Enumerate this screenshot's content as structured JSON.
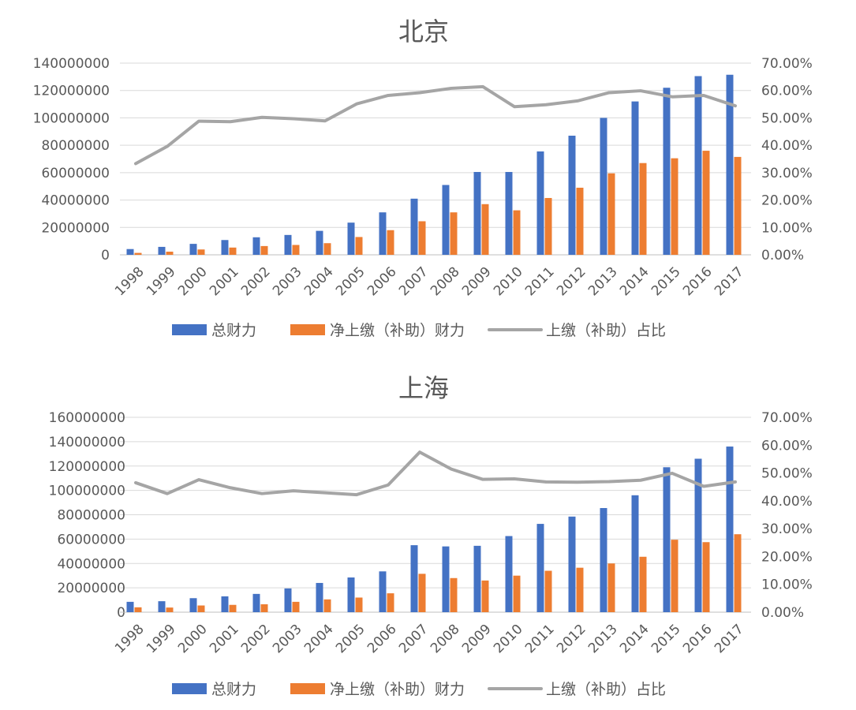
{
  "chart_data": [
    {
      "type": "bar",
      "title": "北京",
      "categories": [
        "1998",
        "1999",
        "2000",
        "2001",
        "2002",
        "2003",
        "2004",
        "2005",
        "2006",
        "2007",
        "2008",
        "2009",
        "2010",
        "2011",
        "2012",
        "2013",
        "2014",
        "2015",
        "2016",
        "2017"
      ],
      "series": [
        {
          "name": "总财力",
          "kind": "bar",
          "axis": "left",
          "color": "#4472c4",
          "values": [
            4200000,
            5800000,
            8000000,
            10800000,
            12800000,
            14500000,
            17500000,
            23500000,
            31000000,
            41000000,
            51000000,
            60500000,
            60500000,
            75500000,
            87000000,
            100000000,
            112000000,
            122000000,
            130500000,
            131500000
          ]
        },
        {
          "name": "净上缴（补助）财力",
          "kind": "bar",
          "axis": "left",
          "color": "#ed7d31",
          "values": [
            1400000,
            2300000,
            3900000,
            5300000,
            6400000,
            7200000,
            8500000,
            13000000,
            18000000,
            24500000,
            31000000,
            37000000,
            32500000,
            41500000,
            49000000,
            59500000,
            67000000,
            70500000,
            76000000,
            71500000
          ]
        },
        {
          "name": "上缴（补助）占比",
          "kind": "line",
          "axis": "right",
          "color": "#a5a5a5",
          "values": [
            0.333,
            0.396,
            0.488,
            0.486,
            0.502,
            0.497,
            0.489,
            0.551,
            0.582,
            0.592,
            0.608,
            0.614,
            0.541,
            0.548,
            0.562,
            0.592,
            0.599,
            0.577,
            0.582,
            0.544
          ]
        }
      ],
      "ylim_left": [
        0,
        140000000
      ],
      "ylim_right": [
        0,
        0.7
      ],
      "yticks_left": [
        "0",
        "20000000",
        "40000000",
        "60000000",
        "80000000",
        "100000000",
        "120000000",
        "140000000"
      ],
      "yticks_right": [
        "0.00%",
        "10.00%",
        "20.00%",
        "30.00%",
        "40.00%",
        "50.00%",
        "60.00%",
        "70.00%"
      ],
      "grid": true,
      "legend_position": "bottom"
    },
    {
      "type": "bar",
      "title": "上海",
      "categories": [
        "1998",
        "1999",
        "2000",
        "2001",
        "2002",
        "2003",
        "2004",
        "2005",
        "2006",
        "2007",
        "2008",
        "2009",
        "2010",
        "2011",
        "2012",
        "2013",
        "2014",
        "2015",
        "2016",
        "2017"
      ],
      "series": [
        {
          "name": "总财力",
          "kind": "bar",
          "axis": "left",
          "color": "#4472c4",
          "values": [
            8500000,
            9000000,
            11500000,
            13000000,
            15000000,
            19500000,
            24000000,
            28500000,
            33500000,
            55000000,
            54000000,
            54500000,
            62500000,
            72500000,
            78500000,
            85500000,
            96000000,
            119000000,
            126000000,
            136000000
          ]
        },
        {
          "name": "净上缴（补助）财力",
          "kind": "bar",
          "axis": "left",
          "color": "#ed7d31",
          "values": [
            4000000,
            3800000,
            5500000,
            6000000,
            6500000,
            8500000,
            10500000,
            12000000,
            15500000,
            31500000,
            28000000,
            26000000,
            30000000,
            34000000,
            36500000,
            40000000,
            45500000,
            59500000,
            57500000,
            64000000
          ]
        },
        {
          "name": "上缴（补助）占比",
          "kind": "line",
          "axis": "right",
          "color": "#a5a5a5",
          "values": [
            0.465,
            0.426,
            0.476,
            0.447,
            0.426,
            0.436,
            0.429,
            0.422,
            0.457,
            0.575,
            0.514,
            0.477,
            0.479,
            0.468,
            0.467,
            0.469,
            0.474,
            0.499,
            0.452,
            0.468
          ]
        }
      ],
      "ylim_left": [
        0,
        160000000
      ],
      "ylim_right": [
        0,
        0.7
      ],
      "yticks_left": [
        "0",
        "20000000",
        "40000000",
        "60000000",
        "80000000",
        "100000000",
        "120000000",
        "140000000",
        "160000000"
      ],
      "yticks_right": [
        "0.00%",
        "10.00%",
        "20.00%",
        "30.00%",
        "40.00%",
        "50.00%",
        "60.00%",
        "70.00%"
      ],
      "grid": true,
      "legend_position": "bottom"
    }
  ]
}
